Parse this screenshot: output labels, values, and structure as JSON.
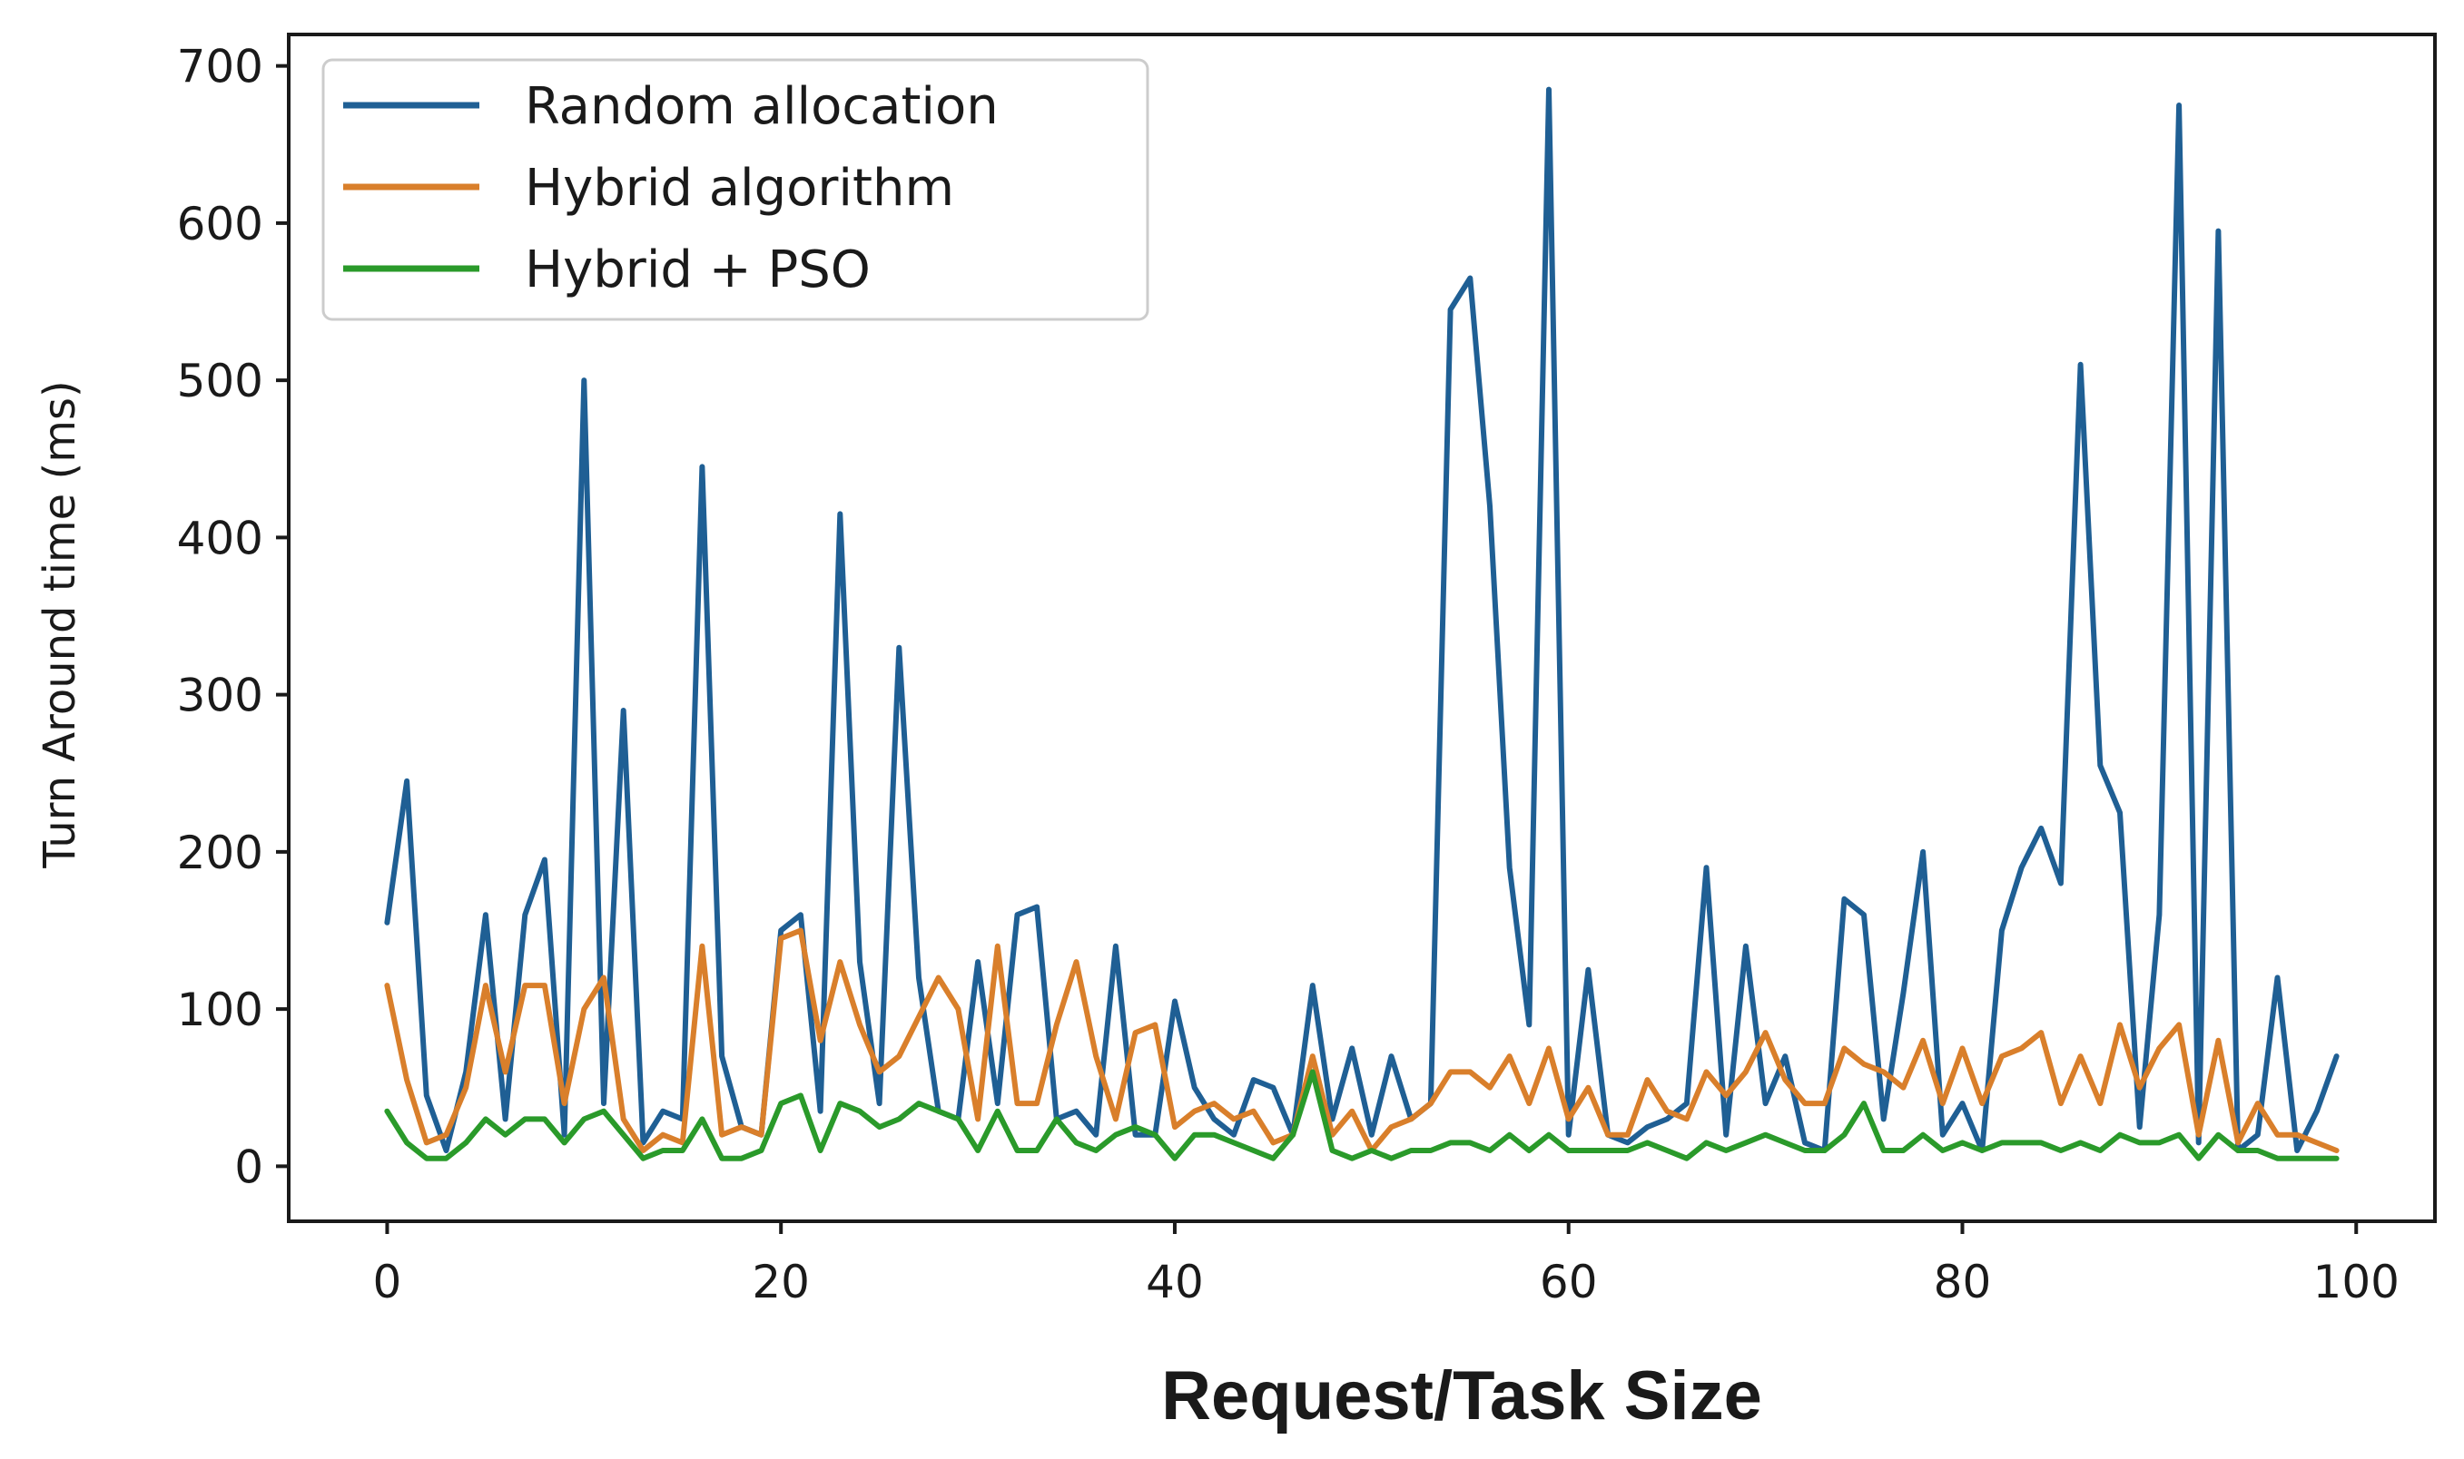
{
  "chart_data": {
    "type": "line",
    "title": "",
    "xlabel": "Request/Task Size",
    "ylabel": "Turn Around time (ms)",
    "xlim": [
      -5,
      104
    ],
    "ylim": [
      -35,
      720
    ],
    "xticks": [
      0,
      20,
      40,
      60,
      80,
      100
    ],
    "yticks": [
      0,
      100,
      200,
      300,
      400,
      500,
      600,
      700
    ],
    "grid": false,
    "legend_position": "top-left",
    "x": [
      0,
      1,
      2,
      3,
      4,
      5,
      6,
      7,
      8,
      9,
      10,
      11,
      12,
      13,
      14,
      15,
      16,
      17,
      18,
      19,
      20,
      21,
      22,
      23,
      24,
      25,
      26,
      27,
      28,
      29,
      30,
      31,
      32,
      33,
      34,
      35,
      36,
      37,
      38,
      39,
      40,
      41,
      42,
      43,
      44,
      45,
      46,
      47,
      48,
      49,
      50,
      51,
      52,
      53,
      54,
      55,
      56,
      57,
      58,
      59,
      60,
      61,
      62,
      63,
      64,
      65,
      66,
      67,
      68,
      69,
      70,
      71,
      72,
      73,
      74,
      75,
      76,
      77,
      78,
      79,
      80,
      81,
      82,
      83,
      84,
      85,
      86,
      87,
      88,
      89,
      90,
      91,
      92,
      93,
      94,
      95,
      96,
      97,
      98,
      99
    ],
    "series": [
      {
        "name": "Random allocation",
        "color": "#1f5f94",
        "values": [
          155,
          245,
          45,
          10,
          60,
          160,
          30,
          160,
          195,
          20,
          500,
          40,
          290,
          15,
          35,
          30,
          445,
          70,
          25,
          20,
          150,
          160,
          35,
          415,
          130,
          40,
          330,
          120,
          35,
          30,
          130,
          40,
          160,
          165,
          30,
          35,
          20,
          140,
          20,
          20,
          105,
          50,
          30,
          20,
          55,
          50,
          20,
          115,
          30,
          75,
          20,
          70,
          30,
          40,
          545,
          565,
          420,
          190,
          90,
          685,
          20,
          125,
          20,
          15,
          25,
          30,
          40,
          190,
          20,
          140,
          40,
          70,
          15,
          10,
          170,
          160,
          30,
          110,
          200,
          20,
          40,
          10,
          150,
          190,
          215,
          180,
          510,
          255,
          225,
          25,
          160,
          675,
          15,
          595,
          10,
          20,
          120,
          10,
          35,
          70
        ]
      },
      {
        "name": "Hybrid algorithm",
        "color": "#d97f2b",
        "values": [
          115,
          55,
          15,
          20,
          50,
          115,
          60,
          115,
          115,
          40,
          100,
          120,
          30,
          10,
          20,
          15,
          140,
          20,
          25,
          20,
          145,
          150,
          80,
          130,
          90,
          60,
          70,
          95,
          120,
          100,
          30,
          140,
          40,
          40,
          90,
          130,
          70,
          30,
          85,
          90,
          25,
          35,
          40,
          30,
          35,
          15,
          20,
          70,
          20,
          35,
          10,
          25,
          30,
          40,
          60,
          60,
          50,
          70,
          40,
          75,
          30,
          50,
          20,
          20,
          55,
          35,
          30,
          60,
          45,
          60,
          85,
          55,
          40,
          40,
          75,
          65,
          60,
          50,
          80,
          40,
          75,
          40,
          70,
          75,
          85,
          40,
          70,
          40,
          90,
          50,
          75,
          90,
          20,
          80,
          15,
          40,
          20,
          20,
          15,
          10
        ]
      },
      {
        "name": "Hybrid + PSO",
        "color": "#2a9a2a",
        "values": [
          35,
          15,
          5,
          5,
          15,
          30,
          20,
          30,
          30,
          15,
          30,
          35,
          20,
          5,
          10,
          10,
          30,
          5,
          5,
          10,
          40,
          45,
          10,
          40,
          35,
          25,
          30,
          40,
          35,
          30,
          10,
          35,
          10,
          10,
          30,
          15,
          10,
          20,
          25,
          20,
          5,
          20,
          20,
          15,
          10,
          5,
          20,
          60,
          10,
          5,
          10,
          5,
          10,
          10,
          15,
          15,
          10,
          20,
          10,
          20,
          10,
          10,
          10,
          10,
          15,
          10,
          5,
          15,
          10,
          15,
          20,
          15,
          10,
          10,
          20,
          40,
          10,
          10,
          20,
          10,
          15,
          10,
          15,
          15,
          15,
          10,
          15,
          10,
          20,
          15,
          15,
          20,
          5,
          20,
          10,
          10,
          5,
          5,
          5,
          5
        ]
      }
    ]
  }
}
